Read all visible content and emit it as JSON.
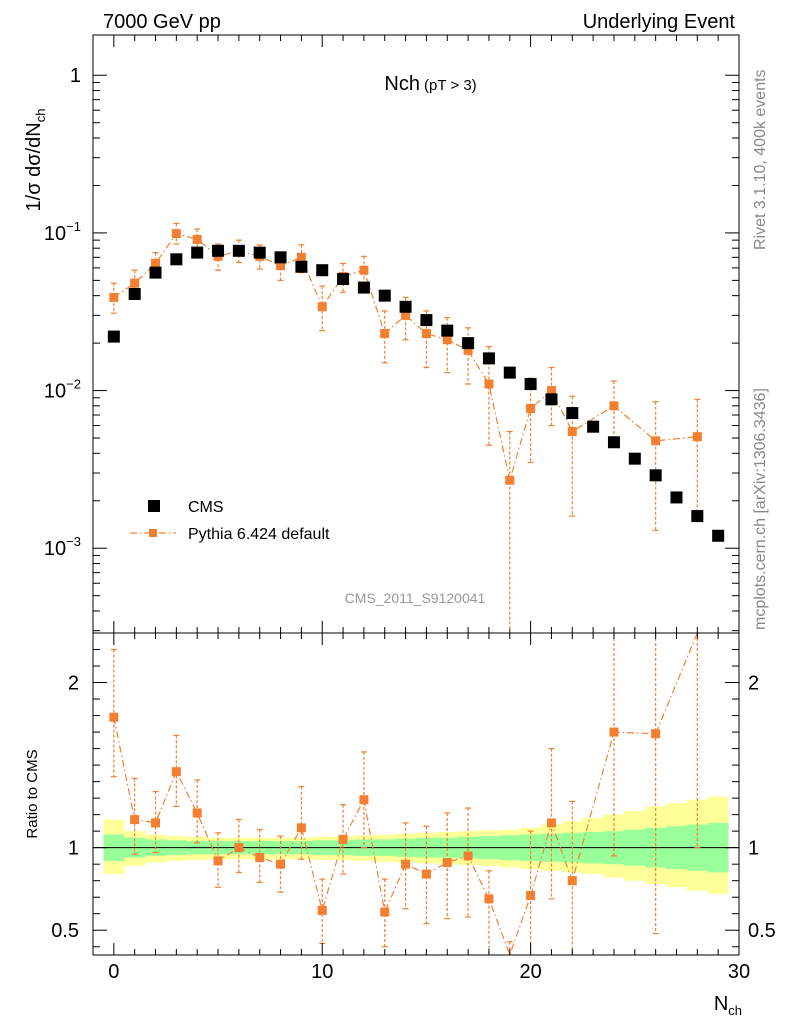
{
  "header": {
    "left": "7000 GeV pp",
    "right": "Underlying Event"
  },
  "side": {
    "top": "Rivet 3.1.10,  400k events",
    "bottom": "mcplots.cern.ch [arXiv:1306.3436]"
  },
  "chart_data": [
    {
      "type": "scatter",
      "panel": "main",
      "title": "Nch",
      "title_note": "(pT >  3)",
      "ylabel": "1/σ dσ/dN",
      "ylabel_sub": "ch",
      "yscale": "log",
      "xlim": [
        -1,
        30
      ],
      "ylim": [
        0.00029,
        1.8
      ],
      "ytick_labels": [
        {
          "value": 1,
          "base": "1",
          "exp": ""
        },
        {
          "value": 0.1,
          "base": "10",
          "exp": "−1"
        },
        {
          "value": 0.01,
          "base": "10",
          "exp": "−2"
        },
        {
          "value": 0.001,
          "base": "10",
          "exp": "−3"
        }
      ],
      "watermark": "CMS_2011_S9120041",
      "legend": {
        "position": "bottom-left",
        "cms_label": "CMS",
        "mc_label": "Pythia 6.424 default"
      },
      "series": [
        {
          "name": "CMS",
          "color": "#000000",
          "marker": "square",
          "x": [
            0,
            1,
            2,
            3,
            4,
            5,
            6,
            7,
            8,
            9,
            10,
            11,
            12,
            13,
            14,
            15,
            16,
            17,
            18,
            19,
            20,
            21,
            22,
            23,
            24,
            25,
            26,
            27,
            28,
            29
          ],
          "y": [
            0.022,
            0.041,
            0.056,
            0.068,
            0.075,
            0.077,
            0.077,
            0.075,
            0.07,
            0.061,
            0.058,
            0.051,
            0.045,
            0.04,
            0.034,
            0.028,
            0.024,
            0.02,
            0.016,
            0.013,
            0.011,
            0.0088,
            0.0072,
            0.0059,
            0.0047,
            0.0037,
            0.0029,
            0.0021,
            0.0016,
            0.0012
          ]
        },
        {
          "name": "Pythia 6.424 default",
          "color": "#f57f30",
          "marker": "square",
          "line": "dash-dot",
          "x": [
            0,
            1,
            2,
            3,
            4,
            5,
            6,
            7,
            8,
            9,
            10,
            11,
            12,
            13,
            14,
            15,
            16,
            17,
            18,
            19,
            20,
            21,
            22,
            24,
            26,
            28
          ],
          "y": [
            0.039,
            0.048,
            0.064,
            0.099,
            0.091,
            0.071,
            0.077,
            0.071,
            0.062,
            0.07,
            0.034,
            0.053,
            0.058,
            0.023,
            0.03,
            0.023,
            0.021,
            0.018,
            0.011,
            0.0027,
            0.0077,
            0.01,
            0.0055,
            0.008,
            0.0048,
            0.0051
          ],
          "err_lo": [
            0.031,
            0.039,
            0.054,
            0.085,
            0.077,
            0.058,
            0.065,
            0.059,
            0.05,
            0.056,
            0.024,
            0.042,
            0.045,
            0.015,
            0.021,
            0.014,
            0.013,
            0.011,
            0.0045,
            0.0002,
            0.0035,
            0.006,
            0.0016,
            0.0045,
            0.0013,
            0.0016
          ],
          "err_hi": [
            0.048,
            0.058,
            0.075,
            0.115,
            0.106,
            0.085,
            0.09,
            0.084,
            0.075,
            0.084,
            0.046,
            0.064,
            0.071,
            0.032,
            0.039,
            0.032,
            0.029,
            0.025,
            0.019,
            0.0055,
            0.012,
            0.014,
            0.0092,
            0.0115,
            0.0085,
            0.0088
          ]
        }
      ]
    },
    {
      "type": "line",
      "panel": "ratio",
      "xlabel": "N",
      "xlabel_sub": "ch",
      "ylabel": "Ratio to CMS",
      "xlim": [
        -1,
        30
      ],
      "ylim": [
        0.35,
        2.3
      ],
      "xticks": [
        0,
        10,
        20,
        30
      ],
      "yticks": [
        0.5,
        1,
        2
      ],
      "band_colors": {
        "yellow": "#ffff99",
        "green": "#99ff99"
      },
      "band": {
        "x": [
          0,
          1,
          2,
          3,
          4,
          5,
          6,
          7,
          8,
          9,
          10,
          11,
          12,
          13,
          14,
          15,
          16,
          17,
          18,
          19,
          20,
          21,
          22,
          23,
          24,
          25,
          26,
          27,
          28,
          29
        ],
        "green_lo": [
          0.92,
          0.94,
          0.95,
          0.955,
          0.96,
          0.96,
          0.96,
          0.96,
          0.96,
          0.96,
          0.955,
          0.955,
          0.95,
          0.95,
          0.945,
          0.94,
          0.94,
          0.935,
          0.93,
          0.925,
          0.92,
          0.915,
          0.91,
          0.905,
          0.9,
          0.89,
          0.88,
          0.87,
          0.86,
          0.85
        ],
        "green_hi": [
          1.08,
          1.06,
          1.05,
          1.045,
          1.04,
          1.04,
          1.04,
          1.04,
          1.04,
          1.04,
          1.045,
          1.045,
          1.05,
          1.05,
          1.055,
          1.06,
          1.06,
          1.065,
          1.07,
          1.075,
          1.08,
          1.085,
          1.09,
          1.095,
          1.1,
          1.11,
          1.12,
          1.13,
          1.14,
          1.15
        ],
        "yellow_lo": [
          0.84,
          0.89,
          0.91,
          0.92,
          0.925,
          0.93,
          0.93,
          0.93,
          0.93,
          0.93,
          0.925,
          0.925,
          0.92,
          0.915,
          0.91,
          0.905,
          0.9,
          0.895,
          0.89,
          0.88,
          0.87,
          0.86,
          0.85,
          0.84,
          0.82,
          0.8,
          0.78,
          0.76,
          0.74,
          0.72
        ],
        "yellow_hi": [
          1.17,
          1.1,
          1.08,
          1.07,
          1.065,
          1.06,
          1.06,
          1.06,
          1.06,
          1.06,
          1.065,
          1.07,
          1.075,
          1.08,
          1.085,
          1.09,
          1.095,
          1.1,
          1.105,
          1.11,
          1.12,
          1.14,
          1.16,
          1.18,
          1.2,
          1.22,
          1.25,
          1.27,
          1.29,
          1.31
        ]
      },
      "series": [
        {
          "name": "Pythia 6.424 default",
          "color": "#f57f30",
          "x": [
            0,
            1,
            2,
            3,
            4,
            5,
            6,
            7,
            8,
            9,
            10,
            11,
            12,
            13,
            14,
            15,
            16,
            17,
            18,
            19,
            20,
            21,
            22,
            24,
            26,
            28
          ],
          "y": [
            1.79,
            1.17,
            1.15,
            1.46,
            1.21,
            0.92,
            1.0,
            0.94,
            0.9,
            1.12,
            0.62,
            1.05,
            1.29,
            0.61,
            0.9,
            0.84,
            0.91,
            0.95,
            0.69,
            0.21,
            0.71,
            1.15,
            0.8,
            1.7,
            1.69,
            3.2
          ],
          "err_lo": [
            1.43,
            0.96,
            0.97,
            1.25,
            1.03,
            0.76,
            0.85,
            0.79,
            0.73,
            0.93,
            0.42,
            0.84,
            1.0,
            0.4,
            0.63,
            0.54,
            0.57,
            0.58,
            0.32,
            0.02,
            0.35,
            0.69,
            0.27,
            0.95,
            0.48,
            1.0
          ],
          "err_hi": [
            2.2,
            1.42,
            1.34,
            1.68,
            1.41,
            1.09,
            1.17,
            1.11,
            1.07,
            1.37,
            0.81,
            1.26,
            1.58,
            0.81,
            1.15,
            1.13,
            1.21,
            1.24,
            0.86,
            0.43,
            1.1,
            1.6,
            1.28,
            2.5,
            2.9,
            5.5
          ]
        }
      ]
    }
  ]
}
